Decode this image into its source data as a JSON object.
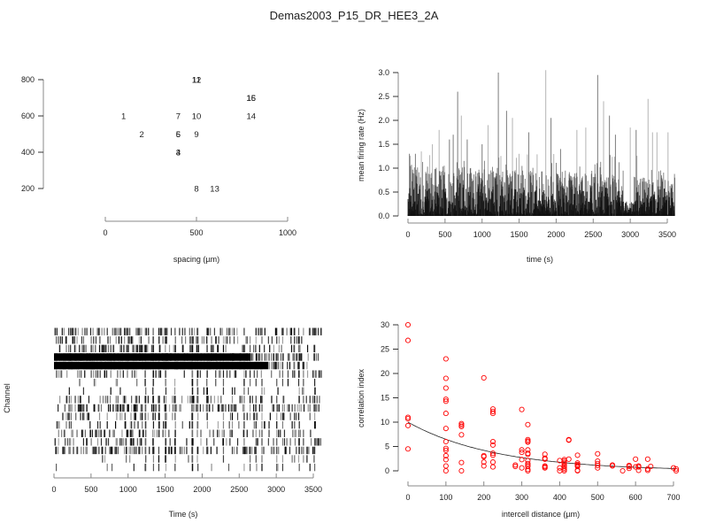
{
  "title": "Demas2003_P15_DR_HEE3_2A",
  "chart_data": [
    {
      "id": "layout",
      "type": "scatter",
      "title": "",
      "xlabel": "spacing (µm)",
      "ylabel": "",
      "xlim": [
        0,
        1000
      ],
      "ylim": [
        200,
        800
      ],
      "xticks": [
        0,
        500,
        1000
      ],
      "yticks": [
        200,
        400,
        600,
        800
      ],
      "marker": "text-label",
      "points": [
        {
          "label": "1",
          "x": 100,
          "y": 600
        },
        {
          "label": "2",
          "x": 200,
          "y": 500
        },
        {
          "label": "3",
          "x": 400,
          "y": 400
        },
        {
          "label": "4",
          "x": 400,
          "y": 400
        },
        {
          "label": "5",
          "x": 400,
          "y": 500
        },
        {
          "label": "6",
          "x": 400,
          "y": 500
        },
        {
          "label": "7",
          "x": 400,
          "y": 600
        },
        {
          "label": "8",
          "x": 500,
          "y": 200
        },
        {
          "label": "9",
          "x": 500,
          "y": 500
        },
        {
          "label": "10",
          "x": 500,
          "y": 600
        },
        {
          "label": "11",
          "x": 500,
          "y": 800
        },
        {
          "label": "12",
          "x": 500,
          "y": 800
        },
        {
          "label": "13",
          "x": 600,
          "y": 200
        },
        {
          "label": "14",
          "x": 800,
          "y": 600
        },
        {
          "label": "15",
          "x": 800,
          "y": 700
        },
        {
          "label": "16",
          "x": 800,
          "y": 700
        }
      ]
    },
    {
      "id": "rate",
      "type": "line",
      "title": "",
      "xlabel": "time (s)",
      "ylabel": "mean firing rate (Hz)",
      "xlim": [
        0,
        3600
      ],
      "ylim": [
        0,
        3.0
      ],
      "xticks": [
        0,
        500,
        1000,
        1500,
        2000,
        2500,
        3000,
        3500
      ],
      "yticks": [
        "0.0",
        "0.5",
        "1.0",
        "1.5",
        "2.0",
        "2.5",
        "3.0"
      ],
      "n_channels": 17,
      "peaks": [
        {
          "t": 20,
          "rate": 1.3
        },
        {
          "t": 100,
          "rate": 1.3
        },
        {
          "t": 180,
          "rate": 1.35
        },
        {
          "t": 330,
          "rate": 1.5
        },
        {
          "t": 420,
          "rate": 1.8
        },
        {
          "t": 560,
          "rate": 1.6
        },
        {
          "t": 610,
          "rate": 1.7
        },
        {
          "t": 670,
          "rate": 2.6
        },
        {
          "t": 720,
          "rate": 2.1
        },
        {
          "t": 800,
          "rate": 1.6
        },
        {
          "t": 1000,
          "rate": 1.5
        },
        {
          "t": 1080,
          "rate": 1.9
        },
        {
          "t": 1220,
          "rate": 3.0
        },
        {
          "t": 1330,
          "rate": 2.2
        },
        {
          "t": 1410,
          "rate": 2.05
        },
        {
          "t": 1500,
          "rate": 1.3
        },
        {
          "t": 1630,
          "rate": 1.75
        },
        {
          "t": 1860,
          "rate": 3.05
        },
        {
          "t": 1930,
          "rate": 2.05
        },
        {
          "t": 2060,
          "rate": 1.4
        },
        {
          "t": 2280,
          "rate": 1.8
        },
        {
          "t": 2400,
          "rate": 1.85
        },
        {
          "t": 2560,
          "rate": 2.95
        },
        {
          "t": 2640,
          "rate": 2.4
        },
        {
          "t": 2720,
          "rate": 2.1
        },
        {
          "t": 2800,
          "rate": 1.7
        },
        {
          "t": 3000,
          "rate": 1.85
        },
        {
          "t": 3080,
          "rate": 1.8
        },
        {
          "t": 3240,
          "rate": 2.45
        },
        {
          "t": 3300,
          "rate": 1.75
        },
        {
          "t": 3360,
          "rate": 1.75
        },
        {
          "t": 3510,
          "rate": 1.75
        },
        {
          "t": 3600,
          "rate": 0.8
        }
      ]
    },
    {
      "id": "raster",
      "type": "raster",
      "title": "",
      "xlabel": "Time (s)",
      "ylabel": "Channel",
      "xlim": [
        0,
        3600
      ],
      "xticks": [
        0,
        500,
        1000,
        1500,
        2000,
        2500,
        3000,
        3500
      ],
      "n_channels": 17,
      "channel_activity": [
        0.55,
        0.35,
        0.45,
        0.9,
        1.0,
        0.35,
        0.05,
        0.07,
        0.3,
        0.6,
        0.3,
        0.25,
        0.35,
        0.35,
        0.55,
        0.06,
        0.12
      ],
      "channel_end_time": [
        3600,
        3400,
        3600,
        3600,
        3420,
        3600,
        3600,
        3600,
        3600,
        3600,
        3600,
        3600,
        3600,
        3600,
        3600,
        3600,
        3600
      ]
    },
    {
      "id": "correlation",
      "type": "scatter",
      "title": "",
      "xlabel": "intercell distance (µm)",
      "ylabel": "correlation index",
      "xlim": [
        0,
        710
      ],
      "ylim": [
        0,
        30
      ],
      "xticks": [
        0,
        100,
        200,
        300,
        400,
        500,
        600,
        700
      ],
      "yticks": [
        0,
        5,
        10,
        15,
        20,
        25,
        30
      ],
      "point_color": "#ff0000",
      "fit": {
        "type": "exponential",
        "a": 10.0,
        "lambda": 230
      },
      "points": [
        [
          0,
          30
        ],
        [
          0,
          26.8
        ],
        [
          0,
          11
        ],
        [
          0,
          10.7
        ],
        [
          0,
          9.3
        ],
        [
          0,
          4.5
        ],
        [
          100,
          23
        ],
        [
          100,
          19
        ],
        [
          100,
          17
        ],
        [
          100,
          14.7
        ],
        [
          100,
          14.3
        ],
        [
          100,
          11.8
        ],
        [
          100,
          8.7
        ],
        [
          100,
          6
        ],
        [
          100,
          4.6
        ],
        [
          100,
          4.2
        ],
        [
          100,
          3.1
        ],
        [
          100,
          2.3
        ],
        [
          100,
          1
        ],
        [
          100,
          0
        ],
        [
          141,
          9.7
        ],
        [
          141,
          9.4
        ],
        [
          141,
          9.1
        ],
        [
          141,
          7.4
        ],
        [
          141,
          1.7
        ],
        [
          141,
          0
        ],
        [
          200,
          19.1
        ],
        [
          200,
          3.1
        ],
        [
          200,
          2.9
        ],
        [
          200,
          1.8
        ],
        [
          200,
          1
        ],
        [
          224,
          12.7
        ],
        [
          224,
          12.2
        ],
        [
          224,
          11.8
        ],
        [
          224,
          6
        ],
        [
          224,
          5.3
        ],
        [
          224,
          3.6
        ],
        [
          224,
          3.2
        ],
        [
          224,
          1.8
        ],
        [
          224,
          0.8
        ],
        [
          283,
          1.2
        ],
        [
          283,
          0.9
        ],
        [
          300,
          12.6
        ],
        [
          300,
          4.3
        ],
        [
          300,
          3.8
        ],
        [
          300,
          2.3
        ],
        [
          300,
          0.6
        ],
        [
          316,
          9.5
        ],
        [
          316,
          6.4
        ],
        [
          316,
          6.1
        ],
        [
          316,
          5.9
        ],
        [
          316,
          4.3
        ],
        [
          316,
          3.6
        ],
        [
          316,
          3.4
        ],
        [
          316,
          2.1
        ],
        [
          316,
          1.5
        ],
        [
          316,
          1.2
        ],
        [
          316,
          0.9
        ],
        [
          316,
          0.3
        ],
        [
          316,
          0
        ],
        [
          361,
          3.4
        ],
        [
          361,
          2.6
        ],
        [
          361,
          2.4
        ],
        [
          361,
          1.0
        ],
        [
          361,
          0.8
        ],
        [
          361,
          0.6
        ],
        [
          400,
          2.1
        ],
        [
          400,
          0.6
        ],
        [
          400,
          0
        ],
        [
          412,
          2.3
        ],
        [
          412,
          2.0
        ],
        [
          412,
          1.7
        ],
        [
          412,
          1.4
        ],
        [
          412,
          1.0
        ],
        [
          412,
          0.6
        ],
        [
          412,
          0.3
        ],
        [
          412,
          0
        ],
        [
          424,
          6.4
        ],
        [
          424,
          6.3
        ],
        [
          424,
          2.4
        ],
        [
          447,
          3.2
        ],
        [
          447,
          1.6
        ],
        [
          447,
          1.3
        ],
        [
          447,
          1.1
        ],
        [
          447,
          0.9
        ],
        [
          447,
          0.1
        ],
        [
          447,
          0
        ],
        [
          500,
          3.5
        ],
        [
          500,
          2.0
        ],
        [
          500,
          1.5
        ],
        [
          500,
          1.1
        ],
        [
          500,
          0.6
        ],
        [
          539,
          1.2
        ],
        [
          539,
          1.0
        ],
        [
          566,
          0
        ],
        [
          583,
          1.1
        ],
        [
          583,
          0.9
        ],
        [
          583,
          0.5
        ],
        [
          600,
          2.4
        ],
        [
          600,
          0.8
        ],
        [
          608,
          1.0
        ],
        [
          608,
          0.8
        ],
        [
          608,
          0.1
        ],
        [
          632,
          2.4
        ],
        [
          632,
          0.4
        ],
        [
          632,
          0.1
        ],
        [
          640,
          0.9
        ],
        [
          700,
          0.6
        ],
        [
          707,
          0.4
        ],
        [
          707,
          0
        ]
      ]
    }
  ]
}
